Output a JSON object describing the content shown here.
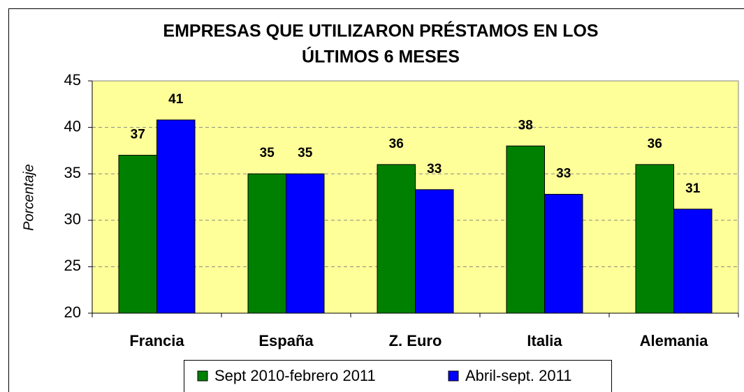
{
  "chart_data": {
    "type": "bar",
    "title": [
      "EMPRESAS QUE UTILIZARON PRÉSTAMOS EN LOS",
      "ÚLTIMOS 6 MESES"
    ],
    "y_label": "Porcentaje",
    "categories": [
      "Francia",
      "España",
      "Z. Euro",
      "Italia",
      "Alemania"
    ],
    "series": [
      {
        "name": "Sept 2010-febrero 2011",
        "color": "#008000",
        "values": [
          37,
          35,
          36,
          38,
          36
        ]
      },
      {
        "name": "Abril-sept. 2011",
        "color": "#0000ff",
        "values": [
          40.8,
          35,
          33.3,
          32.8,
          31.2
        ],
        "value_labels": [
          "41",
          "35",
          "33",
          "33",
          "31"
        ]
      }
    ],
    "ylim": [
      20,
      45
    ],
    "yticks": [
      20,
      25,
      30,
      35,
      40,
      45
    ],
    "grid": true,
    "legend": "bottom"
  }
}
